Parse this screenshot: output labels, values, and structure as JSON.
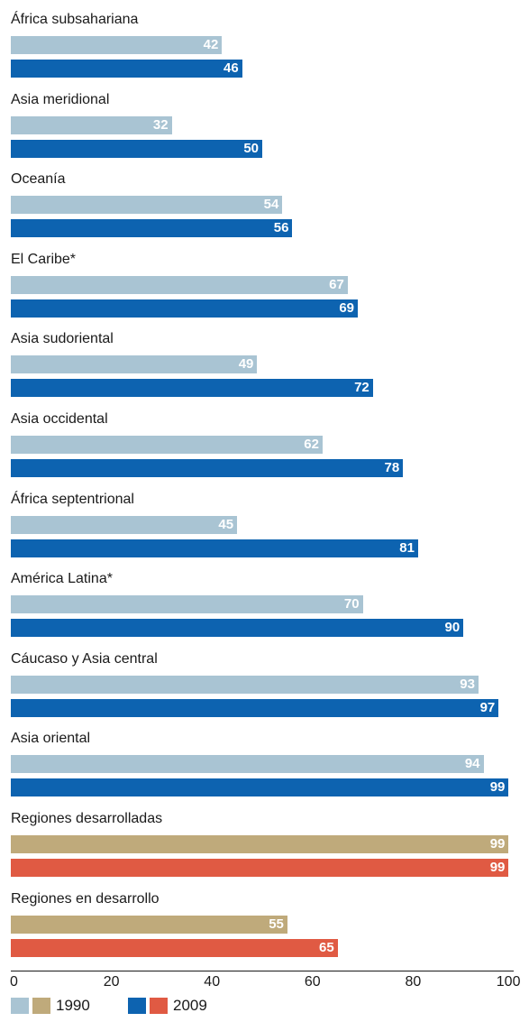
{
  "chart_data": {
    "type": "bar",
    "orientation": "horizontal",
    "categories": [
      "África subsahariana",
      "Asia meridional",
      "Oceanía",
      "El Caribe*",
      "Asia sudoriental",
      "Asia occidental",
      "África septentrional",
      "América Latina*",
      "Cáucaso y Asia central",
      "Asia oriental",
      "Regiones desarrolladas",
      "Regiones en desarrollo"
    ],
    "series": [
      {
        "name": "1990",
        "values": [
          42,
          32,
          54,
          67,
          49,
          62,
          45,
          70,
          93,
          94,
          99,
          55
        ]
      },
      {
        "name": "2009",
        "values": [
          46,
          50,
          56,
          69,
          72,
          78,
          81,
          90,
          97,
          99,
          99,
          65
        ]
      }
    ],
    "colors": {
      "1990_regional": "#a9c4d3",
      "2009_regional": "#0d63b0",
      "1990_aggregate": "#bfaa7b",
      "2009_aggregate": "#e05a43"
    },
    "aggregate_categories": [
      "Regiones desarrolladas",
      "Regiones en desarrollo"
    ],
    "xlim": [
      0,
      100
    ],
    "xticks": [
      0,
      20,
      40,
      60,
      80,
      100
    ],
    "legend_placement": "bottom-left",
    "grid": false
  },
  "legend": {
    "label_1990": "1990",
    "label_2009": "2009"
  }
}
